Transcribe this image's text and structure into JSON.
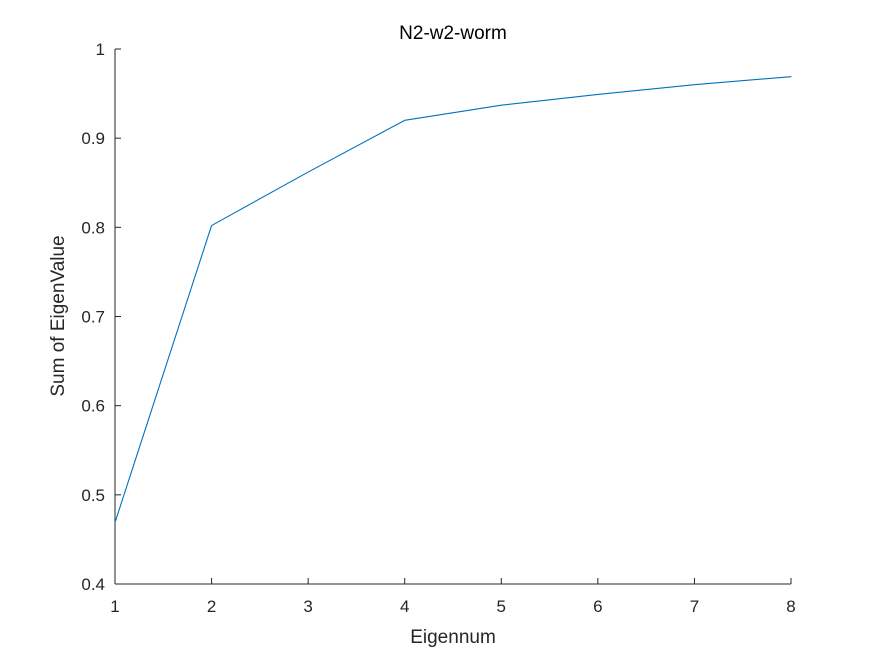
{
  "chart_data": {
    "type": "line",
    "title": "N2-w2-worm",
    "xlabel": "Eigennum",
    "ylabel": "Sum of EigenValue",
    "xlim": [
      1,
      8
    ],
    "ylim": [
      0.4,
      1
    ],
    "xticks": [
      "1",
      "2",
      "3",
      "4",
      "5",
      "6",
      "7",
      "8"
    ],
    "yticks": [
      "0.4",
      "0.5",
      "0.6",
      "0.7",
      "0.8",
      "0.9",
      "1"
    ],
    "grid": false,
    "series": [
      {
        "color": "#0072BD",
        "x": [
          1,
          2,
          3,
          4,
          5,
          6,
          7,
          8
        ],
        "y": [
          0.469,
          0.802,
          0.862,
          0.92,
          0.937,
          0.949,
          0.96,
          0.969
        ]
      }
    ]
  }
}
